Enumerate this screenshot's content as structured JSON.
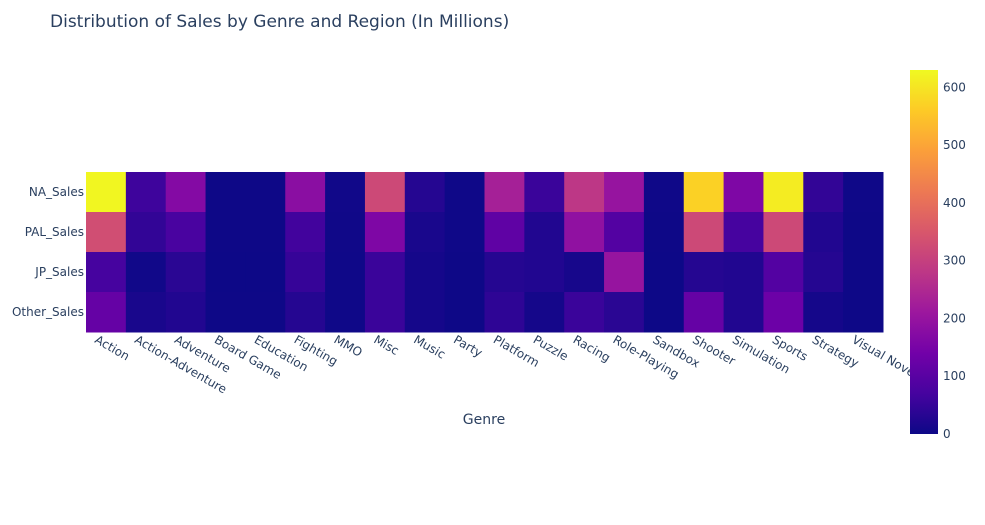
{
  "chart_data": {
    "type": "heatmap",
    "title": "Distribution of Sales by Genre and Region (In Millions)",
    "xlabel": "Genre",
    "ylabel": "",
    "x": [
      "Action",
      "Action-Adventure",
      "Adventure",
      "Board Game",
      "Education",
      "Fighting",
      "MMO",
      "Misc",
      "Music",
      "Party",
      "Platform",
      "Puzzle",
      "Racing",
      "Role-Playing",
      "Sandbox",
      "Shooter",
      "Simulation",
      "Sports",
      "Strategy",
      "Visual Novel"
    ],
    "y": [
      "NA_Sales",
      "PAL_Sales",
      "JP_Sales",
      "Other_Sales"
    ],
    "z": [
      [
        625,
        60,
        170,
        1,
        1,
        180,
        5,
        320,
        30,
        3,
        230,
        55,
        280,
        200,
        2,
        570,
        160,
        610,
        45,
        2
      ],
      [
        330,
        45,
        75,
        1,
        1,
        65,
        4,
        160,
        15,
        2,
        110,
        25,
        190,
        90,
        1,
        320,
        70,
        320,
        25,
        1
      ],
      [
        70,
        5,
        35,
        0,
        0,
        50,
        2,
        55,
        10,
        1,
        30,
        25,
        12,
        200,
        0,
        30,
        25,
        90,
        30,
        1
      ],
      [
        120,
        15,
        25,
        1,
        1,
        30,
        3,
        55,
        10,
        1,
        40,
        10,
        55,
        35,
        0,
        120,
        25,
        130,
        10,
        1
      ]
    ],
    "colorscale": [
      "#0d0887",
      "#46039f",
      "#7201a8",
      "#9c179e",
      "#bd3786",
      "#d8576b",
      "#ed7953",
      "#fb9f3a",
      "#fdca26",
      "#f0f921"
    ],
    "zmin": 0,
    "zmax": 630,
    "colorbar_ticks": [
      "0",
      "100",
      "200",
      "300",
      "400",
      "500",
      "600"
    ],
    "grid": false,
    "legend": "colorbar-right"
  }
}
